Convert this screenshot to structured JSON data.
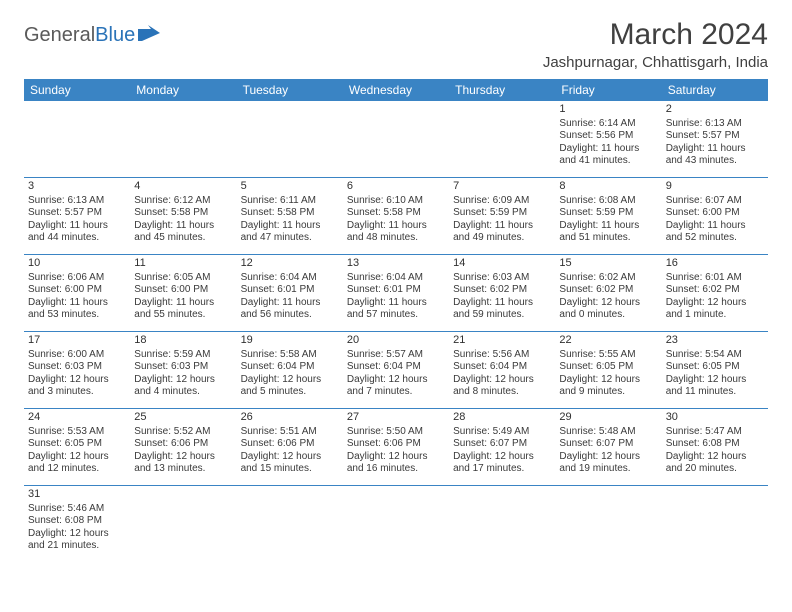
{
  "logo": {
    "text1": "General",
    "text2": "Blue"
  },
  "title": "March 2024",
  "location": "Jashpurnagar, Chhattisgarh, India",
  "headers": [
    "Sunday",
    "Monday",
    "Tuesday",
    "Wednesday",
    "Thursday",
    "Friday",
    "Saturday"
  ],
  "colors": {
    "header_bg": "#3a84c4",
    "header_fg": "#ffffff",
    "rule": "#3a84c4",
    "text": "#3a3a3a",
    "title": "#404040",
    "logo_gray": "#5a5a5a",
    "logo_blue": "#2a73b8"
  },
  "weeks": [
    [
      {
        "blank": true
      },
      {
        "blank": true
      },
      {
        "blank": true
      },
      {
        "blank": true
      },
      {
        "blank": true
      },
      {
        "day": "1",
        "sunrise": "Sunrise: 6:14 AM",
        "sunset": "Sunset: 5:56 PM",
        "dl1": "Daylight: 11 hours",
        "dl2": "and 41 minutes."
      },
      {
        "day": "2",
        "sunrise": "Sunrise: 6:13 AM",
        "sunset": "Sunset: 5:57 PM",
        "dl1": "Daylight: 11 hours",
        "dl2": "and 43 minutes."
      }
    ],
    [
      {
        "day": "3",
        "sunrise": "Sunrise: 6:13 AM",
        "sunset": "Sunset: 5:57 PM",
        "dl1": "Daylight: 11 hours",
        "dl2": "and 44 minutes."
      },
      {
        "day": "4",
        "sunrise": "Sunrise: 6:12 AM",
        "sunset": "Sunset: 5:58 PM",
        "dl1": "Daylight: 11 hours",
        "dl2": "and 45 minutes."
      },
      {
        "day": "5",
        "sunrise": "Sunrise: 6:11 AM",
        "sunset": "Sunset: 5:58 PM",
        "dl1": "Daylight: 11 hours",
        "dl2": "and 47 minutes."
      },
      {
        "day": "6",
        "sunrise": "Sunrise: 6:10 AM",
        "sunset": "Sunset: 5:58 PM",
        "dl1": "Daylight: 11 hours",
        "dl2": "and 48 minutes."
      },
      {
        "day": "7",
        "sunrise": "Sunrise: 6:09 AM",
        "sunset": "Sunset: 5:59 PM",
        "dl1": "Daylight: 11 hours",
        "dl2": "and 49 minutes."
      },
      {
        "day": "8",
        "sunrise": "Sunrise: 6:08 AM",
        "sunset": "Sunset: 5:59 PM",
        "dl1": "Daylight: 11 hours",
        "dl2": "and 51 minutes."
      },
      {
        "day": "9",
        "sunrise": "Sunrise: 6:07 AM",
        "sunset": "Sunset: 6:00 PM",
        "dl1": "Daylight: 11 hours",
        "dl2": "and 52 minutes."
      }
    ],
    [
      {
        "day": "10",
        "sunrise": "Sunrise: 6:06 AM",
        "sunset": "Sunset: 6:00 PM",
        "dl1": "Daylight: 11 hours",
        "dl2": "and 53 minutes."
      },
      {
        "day": "11",
        "sunrise": "Sunrise: 6:05 AM",
        "sunset": "Sunset: 6:00 PM",
        "dl1": "Daylight: 11 hours",
        "dl2": "and 55 minutes."
      },
      {
        "day": "12",
        "sunrise": "Sunrise: 6:04 AM",
        "sunset": "Sunset: 6:01 PM",
        "dl1": "Daylight: 11 hours",
        "dl2": "and 56 minutes."
      },
      {
        "day": "13",
        "sunrise": "Sunrise: 6:04 AM",
        "sunset": "Sunset: 6:01 PM",
        "dl1": "Daylight: 11 hours",
        "dl2": "and 57 minutes."
      },
      {
        "day": "14",
        "sunrise": "Sunrise: 6:03 AM",
        "sunset": "Sunset: 6:02 PM",
        "dl1": "Daylight: 11 hours",
        "dl2": "and 59 minutes."
      },
      {
        "day": "15",
        "sunrise": "Sunrise: 6:02 AM",
        "sunset": "Sunset: 6:02 PM",
        "dl1": "Daylight: 12 hours",
        "dl2": "and 0 minutes."
      },
      {
        "day": "16",
        "sunrise": "Sunrise: 6:01 AM",
        "sunset": "Sunset: 6:02 PM",
        "dl1": "Daylight: 12 hours",
        "dl2": "and 1 minute."
      }
    ],
    [
      {
        "day": "17",
        "sunrise": "Sunrise: 6:00 AM",
        "sunset": "Sunset: 6:03 PM",
        "dl1": "Daylight: 12 hours",
        "dl2": "and 3 minutes."
      },
      {
        "day": "18",
        "sunrise": "Sunrise: 5:59 AM",
        "sunset": "Sunset: 6:03 PM",
        "dl1": "Daylight: 12 hours",
        "dl2": "and 4 minutes."
      },
      {
        "day": "19",
        "sunrise": "Sunrise: 5:58 AM",
        "sunset": "Sunset: 6:04 PM",
        "dl1": "Daylight: 12 hours",
        "dl2": "and 5 minutes."
      },
      {
        "day": "20",
        "sunrise": "Sunrise: 5:57 AM",
        "sunset": "Sunset: 6:04 PM",
        "dl1": "Daylight: 12 hours",
        "dl2": "and 7 minutes."
      },
      {
        "day": "21",
        "sunrise": "Sunrise: 5:56 AM",
        "sunset": "Sunset: 6:04 PM",
        "dl1": "Daylight: 12 hours",
        "dl2": "and 8 minutes."
      },
      {
        "day": "22",
        "sunrise": "Sunrise: 5:55 AM",
        "sunset": "Sunset: 6:05 PM",
        "dl1": "Daylight: 12 hours",
        "dl2": "and 9 minutes."
      },
      {
        "day": "23",
        "sunrise": "Sunrise: 5:54 AM",
        "sunset": "Sunset: 6:05 PM",
        "dl1": "Daylight: 12 hours",
        "dl2": "and 11 minutes."
      }
    ],
    [
      {
        "day": "24",
        "sunrise": "Sunrise: 5:53 AM",
        "sunset": "Sunset: 6:05 PM",
        "dl1": "Daylight: 12 hours",
        "dl2": "and 12 minutes."
      },
      {
        "day": "25",
        "sunrise": "Sunrise: 5:52 AM",
        "sunset": "Sunset: 6:06 PM",
        "dl1": "Daylight: 12 hours",
        "dl2": "and 13 minutes."
      },
      {
        "day": "26",
        "sunrise": "Sunrise: 5:51 AM",
        "sunset": "Sunset: 6:06 PM",
        "dl1": "Daylight: 12 hours",
        "dl2": "and 15 minutes."
      },
      {
        "day": "27",
        "sunrise": "Sunrise: 5:50 AM",
        "sunset": "Sunset: 6:06 PM",
        "dl1": "Daylight: 12 hours",
        "dl2": "and 16 minutes."
      },
      {
        "day": "28",
        "sunrise": "Sunrise: 5:49 AM",
        "sunset": "Sunset: 6:07 PM",
        "dl1": "Daylight: 12 hours",
        "dl2": "and 17 minutes."
      },
      {
        "day": "29",
        "sunrise": "Sunrise: 5:48 AM",
        "sunset": "Sunset: 6:07 PM",
        "dl1": "Daylight: 12 hours",
        "dl2": "and 19 minutes."
      },
      {
        "day": "30",
        "sunrise": "Sunrise: 5:47 AM",
        "sunset": "Sunset: 6:08 PM",
        "dl1": "Daylight: 12 hours",
        "dl2": "and 20 minutes."
      }
    ],
    [
      {
        "day": "31",
        "sunrise": "Sunrise: 5:46 AM",
        "sunset": "Sunset: 6:08 PM",
        "dl1": "Daylight: 12 hours",
        "dl2": "and 21 minutes."
      },
      {
        "blank": true
      },
      {
        "blank": true
      },
      {
        "blank": true
      },
      {
        "blank": true
      },
      {
        "blank": true
      },
      {
        "blank": true
      }
    ]
  ]
}
